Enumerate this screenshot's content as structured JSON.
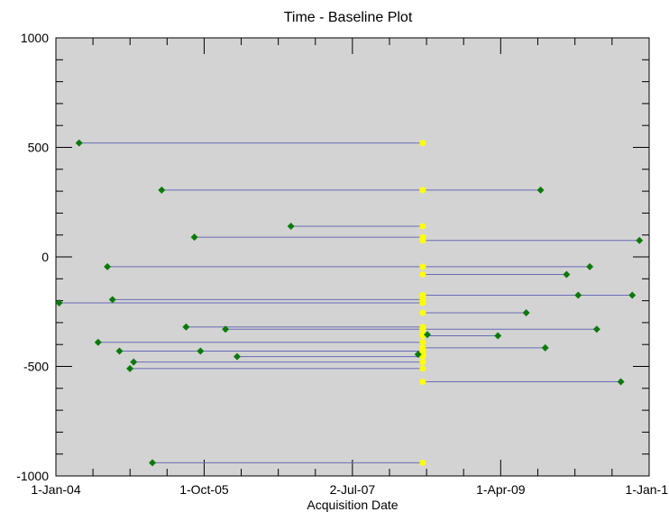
{
  "chart_data": {
    "type": "scatter",
    "title": "Time - Baseline Plot",
    "xlabel": "Acquisition Date",
    "ylabel": "",
    "ylim": [
      -1000,
      1000
    ],
    "xlim": [
      "2004-01-01",
      "2011-01-01"
    ],
    "x_ticks": [
      {
        "date": "2004-01-01",
        "label": "1-Jan-04"
      },
      {
        "date": "2005-10-01",
        "label": "1-Oct-05"
      },
      {
        "date": "2007-07-02",
        "label": "2-Jul-07"
      },
      {
        "date": "2009-04-01",
        "label": "1-Apr-09"
      },
      {
        "date": "2011-01-01",
        "label": "1-Jan-1"
      }
    ],
    "y_ticks": [
      1000,
      500,
      0,
      -500,
      -1000
    ],
    "grid": false,
    "plot_background": "#d3d3d3",
    "line_color": "#6a6ab8",
    "point_color": "#0b7a0b",
    "master_color": "#ffff00",
    "master": {
      "date": "2008-04-30"
    },
    "points": [
      {
        "date": "2004-04-10",
        "y": 520
      },
      {
        "date": "2005-04-01",
        "y": 305
      },
      {
        "date": "2009-09-20",
        "y": 305
      },
      {
        "date": "2006-10-10",
        "y": 140
      },
      {
        "date": "2005-08-20",
        "y": 90
      },
      {
        "date": "2010-11-20",
        "y": 75
      },
      {
        "date": "2004-08-10",
        "y": -45
      },
      {
        "date": "2010-04-20",
        "y": -45
      },
      {
        "date": "2010-01-10",
        "y": -80
      },
      {
        "date": "2004-09-01",
        "y": -195
      },
      {
        "date": "2010-03-01",
        "y": -175
      },
      {
        "date": "2010-10-20",
        "y": -175
      },
      {
        "date": "2004-01-15",
        "y": -210
      },
      {
        "date": "2009-07-20",
        "y": -255
      },
      {
        "date": "2005-07-15",
        "y": -320
      },
      {
        "date": "2006-01-01",
        "y": -330
      },
      {
        "date": "2010-05-20",
        "y": -330
      },
      {
        "date": "2008-05-20",
        "y": -355
      },
      {
        "date": "2009-03-20",
        "y": -360
      },
      {
        "date": "2004-07-01",
        "y": -390
      },
      {
        "date": "2009-10-10",
        "y": -415
      },
      {
        "date": "2004-10-01",
        "y": -430
      },
      {
        "date": "2005-09-15",
        "y": -430
      },
      {
        "date": "2008-04-10",
        "y": -445
      },
      {
        "date": "2006-02-20",
        "y": -455
      },
      {
        "date": "2004-12-01",
        "y": -480
      },
      {
        "date": "2004-11-15",
        "y": -510
      },
      {
        "date": "2010-09-01",
        "y": -570
      },
      {
        "date": "2005-02-20",
        "y": -940
      }
    ]
  }
}
